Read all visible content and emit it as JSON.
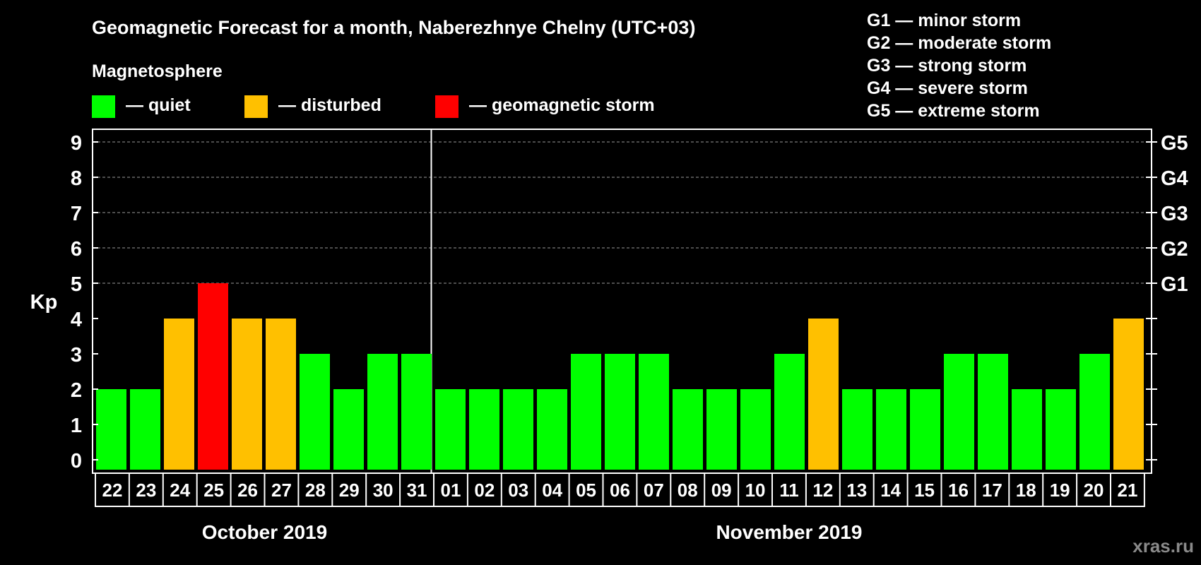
{
  "chart_data": {
    "type": "bar",
    "title": "Geomagnetic Forecast for a month, Naberezhnye Chelny (UTC+03)",
    "legend_title": "Magnetosphere",
    "legend": [
      {
        "key": "quiet",
        "label": "— quiet",
        "color": "#00ff00"
      },
      {
        "key": "disturbed",
        "label": "— disturbed",
        "color": "#ffc000"
      },
      {
        "key": "storm",
        "label": "— geomagnetic storm",
        "color": "#ff0000"
      }
    ],
    "storm_scale": [
      "G1 — minor storm",
      "G2 — moderate storm",
      "G3 — strong storm",
      "G4 — severe storm",
      "G5 — extreme storm"
    ],
    "ylabel": "Kp",
    "ylim": [
      0,
      9
    ],
    "yticks": [
      "0",
      "1",
      "2",
      "3",
      "4",
      "5",
      "6",
      "7",
      "8",
      "9"
    ],
    "right_ticks": [
      {
        "kp": 5,
        "label": "G1"
      },
      {
        "kp": 6,
        "label": "G2"
      },
      {
        "kp": 7,
        "label": "G3"
      },
      {
        "kp": 8,
        "label": "G4"
      },
      {
        "kp": 9,
        "label": "G5"
      }
    ],
    "categories": [
      "22",
      "23",
      "24",
      "25",
      "26",
      "27",
      "28",
      "29",
      "30",
      "31",
      "01",
      "02",
      "03",
      "04",
      "05",
      "06",
      "07",
      "08",
      "09",
      "10",
      "11",
      "12",
      "13",
      "14",
      "15",
      "16",
      "17",
      "18",
      "19",
      "20",
      "21"
    ],
    "values": [
      2,
      2,
      4,
      5,
      4,
      4,
      3,
      2,
      3,
      3,
      2,
      2,
      2,
      2,
      3,
      3,
      3,
      2,
      2,
      2,
      3,
      4,
      2,
      2,
      2,
      3,
      3,
      2,
      2,
      3,
      4
    ],
    "months": [
      {
        "label": "October 2019",
        "start": 0,
        "end": 9
      },
      {
        "label": "November 2019",
        "start": 10,
        "end": 30
      }
    ],
    "grid": true
  },
  "watermark": "xras.ru"
}
